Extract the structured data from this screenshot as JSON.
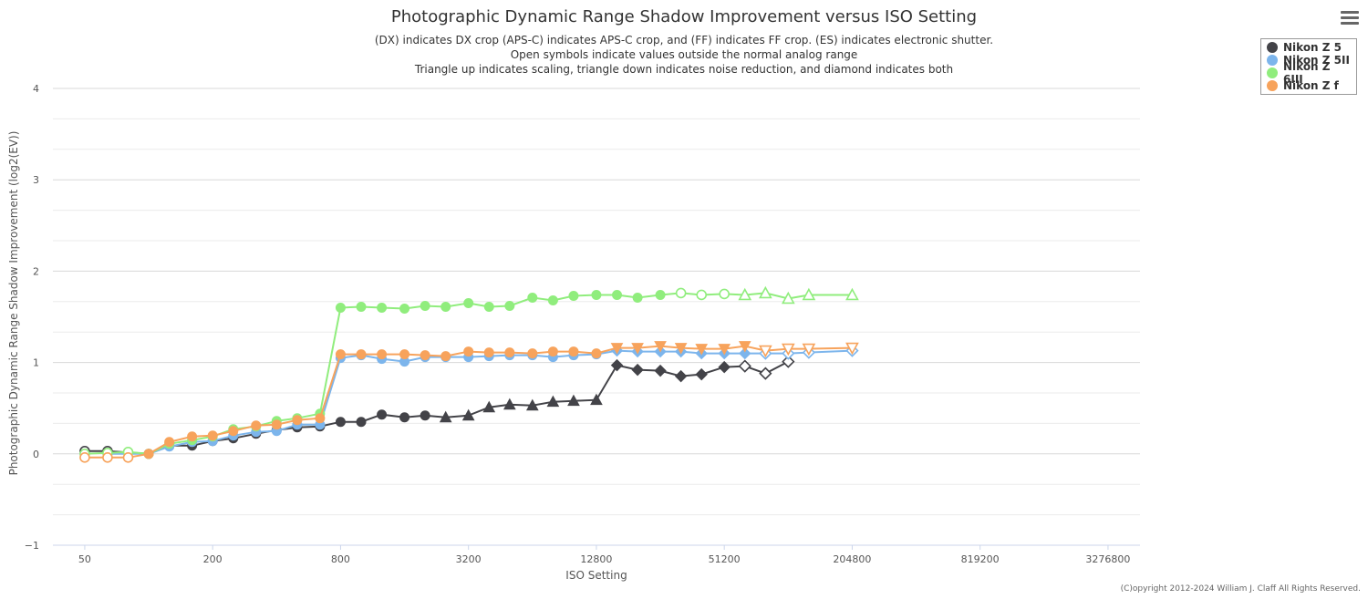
{
  "chart_data": {
    "type": "line",
    "title": "Photographic Dynamic Range Shadow Improvement versus ISO Setting",
    "subtitles": [
      "(DX) indicates DX crop (APS-C) indicates APS-C crop, and (FF) indicates FF crop. (ES) indicates electronic shutter.",
      "Open symbols indicate values outside the normal analog range",
      "Triangle up indicates scaling, triangle down indicates noise reduction, and diamond indicates both"
    ],
    "xlabel": "ISO Setting",
    "ylabel": "Photographic Dynamic Range Shadow Improvement (log2(EV))",
    "x_scale": "log2",
    "xlim": [
      35.4,
      4634146
    ],
    "ylim": [
      -1,
      4
    ],
    "x_ticks": [
      50,
      200,
      800,
      3200,
      12800,
      51200,
      204800,
      819200,
      3276800
    ],
    "x_tick_labels": [
      "50",
      "200",
      "800",
      "3200",
      "12800",
      "51200",
      "204800",
      "819200",
      "3276800"
    ],
    "y_ticks": [
      -1,
      0,
      1,
      2,
      3,
      4
    ],
    "y_tick_labels": [
      "−1",
      "0",
      "1",
      "2",
      "3",
      "4"
    ],
    "legend_position": "top-right",
    "series": [
      {
        "name": "Nikon Z 5",
        "color": "#434348",
        "points": [
          {
            "x": 50,
            "y": 0.03,
            "m": "open-circle"
          },
          {
            "x": 64,
            "y": 0.03,
            "m": "open-circle"
          },
          {
            "x": 100,
            "y": 0.0,
            "m": "circle"
          },
          {
            "x": 125,
            "y": 0.09,
            "m": "circle"
          },
          {
            "x": 160,
            "y": 0.09,
            "m": "circle"
          },
          {
            "x": 200,
            "y": 0.14,
            "m": "circle"
          },
          {
            "x": 250,
            "y": 0.17,
            "m": "circle"
          },
          {
            "x": 320,
            "y": 0.22,
            "m": "circle"
          },
          {
            "x": 400,
            "y": 0.26,
            "m": "circle"
          },
          {
            "x": 500,
            "y": 0.29,
            "m": "circle"
          },
          {
            "x": 640,
            "y": 0.3,
            "m": "circle"
          },
          {
            "x": 800,
            "y": 0.35,
            "m": "circle"
          },
          {
            "x": 1000,
            "y": 0.35,
            "m": "circle"
          },
          {
            "x": 1250,
            "y": 0.43,
            "m": "circle"
          },
          {
            "x": 1600,
            "y": 0.4,
            "m": "circle"
          },
          {
            "x": 2000,
            "y": 0.42,
            "m": "circle"
          },
          {
            "x": 2500,
            "y": 0.4,
            "m": "triangle-up"
          },
          {
            "x": 3200,
            "y": 0.42,
            "m": "triangle-up"
          },
          {
            "x": 4000,
            "y": 0.51,
            "m": "triangle-up"
          },
          {
            "x": 5000,
            "y": 0.54,
            "m": "triangle-up"
          },
          {
            "x": 6400,
            "y": 0.53,
            "m": "triangle-up"
          },
          {
            "x": 8000,
            "y": 0.57,
            "m": "triangle-up"
          },
          {
            "x": 10000,
            "y": 0.58,
            "m": "triangle-up"
          },
          {
            "x": 12800,
            "y": 0.59,
            "m": "triangle-up"
          },
          {
            "x": 16000,
            "y": 0.97,
            "m": "diamond"
          },
          {
            "x": 20000,
            "y": 0.92,
            "m": "diamond"
          },
          {
            "x": 25600,
            "y": 0.91,
            "m": "diamond"
          },
          {
            "x": 32000,
            "y": 0.85,
            "m": "diamond"
          },
          {
            "x": 40000,
            "y": 0.87,
            "m": "diamond"
          },
          {
            "x": 51200,
            "y": 0.95,
            "m": "diamond"
          },
          {
            "x": 64000,
            "y": 0.96,
            "m": "open-diamond"
          },
          {
            "x": 80000,
            "y": 0.88,
            "m": "open-diamond"
          },
          {
            "x": 102400,
            "y": 1.01,
            "m": "open-diamond"
          }
        ]
      },
      {
        "name": "Nikon Z 5II",
        "color": "#7cb5ec",
        "points": [
          {
            "x": 64,
            "y": 0.0,
            "m": "circle"
          },
          {
            "x": 100,
            "y": 0.0,
            "m": "circle"
          },
          {
            "x": 125,
            "y": 0.08,
            "m": "circle"
          },
          {
            "x": 160,
            "y": 0.13,
            "m": "circle"
          },
          {
            "x": 200,
            "y": 0.14,
            "m": "circle"
          },
          {
            "x": 250,
            "y": 0.2,
            "m": "circle"
          },
          {
            "x": 320,
            "y": 0.24,
            "m": "circle"
          },
          {
            "x": 400,
            "y": 0.25,
            "m": "circle"
          },
          {
            "x": 500,
            "y": 0.32,
            "m": "circle"
          },
          {
            "x": 640,
            "y": 0.32,
            "m": "circle"
          },
          {
            "x": 800,
            "y": 1.05,
            "m": "circle"
          },
          {
            "x": 1000,
            "y": 1.08,
            "m": "circle"
          },
          {
            "x": 1250,
            "y": 1.04,
            "m": "circle"
          },
          {
            "x": 1600,
            "y": 1.01,
            "m": "circle"
          },
          {
            "x": 2000,
            "y": 1.06,
            "m": "circle"
          },
          {
            "x": 2500,
            "y": 1.06,
            "m": "circle"
          },
          {
            "x": 3200,
            "y": 1.06,
            "m": "circle"
          },
          {
            "x": 4000,
            "y": 1.07,
            "m": "circle"
          },
          {
            "x": 5000,
            "y": 1.08,
            "m": "circle"
          },
          {
            "x": 6400,
            "y": 1.08,
            "m": "circle"
          },
          {
            "x": 8000,
            "y": 1.06,
            "m": "circle"
          },
          {
            "x": 10000,
            "y": 1.08,
            "m": "circle"
          },
          {
            "x": 12800,
            "y": 1.09,
            "m": "circle"
          },
          {
            "x": 16000,
            "y": 1.13,
            "m": "diamond"
          },
          {
            "x": 20000,
            "y": 1.12,
            "m": "diamond"
          },
          {
            "x": 25600,
            "y": 1.12,
            "m": "diamond"
          },
          {
            "x": 32000,
            "y": 1.12,
            "m": "diamond"
          },
          {
            "x": 40000,
            "y": 1.1,
            "m": "diamond"
          },
          {
            "x": 51200,
            "y": 1.1,
            "m": "diamond"
          },
          {
            "x": 64000,
            "y": 1.1,
            "m": "diamond"
          },
          {
            "x": 80000,
            "y": 1.1,
            "m": "open-diamond"
          },
          {
            "x": 102400,
            "y": 1.1,
            "m": "open-diamond"
          },
          {
            "x": 128000,
            "y": 1.11,
            "m": "open-diamond"
          },
          {
            "x": 204800,
            "y": 1.13,
            "m": "open-diamond"
          }
        ]
      },
      {
        "name": "Nikon Z 6III",
        "color": "#90ed7d",
        "points": [
          {
            "x": 50,
            "y": 0.0,
            "m": "open-circle"
          },
          {
            "x": 64,
            "y": 0.01,
            "m": "open-circle"
          },
          {
            "x": 80,
            "y": 0.02,
            "m": "open-circle"
          },
          {
            "x": 100,
            "y": 0.0,
            "m": "circle"
          },
          {
            "x": 125,
            "y": 0.11,
            "m": "circle"
          },
          {
            "x": 160,
            "y": 0.15,
            "m": "circle"
          },
          {
            "x": 200,
            "y": 0.19,
            "m": "circle"
          },
          {
            "x": 250,
            "y": 0.27,
            "m": "circle"
          },
          {
            "x": 320,
            "y": 0.3,
            "m": "circle"
          },
          {
            "x": 400,
            "y": 0.36,
            "m": "circle"
          },
          {
            "x": 500,
            "y": 0.39,
            "m": "circle"
          },
          {
            "x": 640,
            "y": 0.44,
            "m": "circle"
          },
          {
            "x": 800,
            "y": 1.6,
            "m": "circle"
          },
          {
            "x": 1000,
            "y": 1.61,
            "m": "circle"
          },
          {
            "x": 1250,
            "y": 1.6,
            "m": "circle"
          },
          {
            "x": 1600,
            "y": 1.59,
            "m": "circle"
          },
          {
            "x": 2000,
            "y": 1.62,
            "m": "circle"
          },
          {
            "x": 2500,
            "y": 1.61,
            "m": "circle"
          },
          {
            "x": 3200,
            "y": 1.65,
            "m": "circle"
          },
          {
            "x": 4000,
            "y": 1.61,
            "m": "circle"
          },
          {
            "x": 5000,
            "y": 1.62,
            "m": "circle"
          },
          {
            "x": 6400,
            "y": 1.71,
            "m": "circle"
          },
          {
            "x": 8000,
            "y": 1.68,
            "m": "circle"
          },
          {
            "x": 10000,
            "y": 1.73,
            "m": "circle"
          },
          {
            "x": 12800,
            "y": 1.74,
            "m": "circle"
          },
          {
            "x": 16000,
            "y": 1.74,
            "m": "circle"
          },
          {
            "x": 20000,
            "y": 1.71,
            "m": "circle"
          },
          {
            "x": 25600,
            "y": 1.74,
            "m": "circle"
          },
          {
            "x": 32000,
            "y": 1.76,
            "m": "open-circle"
          },
          {
            "x": 40000,
            "y": 1.74,
            "m": "open-circle"
          },
          {
            "x": 51200,
            "y": 1.75,
            "m": "open-circle"
          },
          {
            "x": 64000,
            "y": 1.74,
            "m": "open-triangle-up"
          },
          {
            "x": 80000,
            "y": 1.76,
            "m": "open-triangle-up"
          },
          {
            "x": 102400,
            "y": 1.7,
            "m": "open-triangle-up"
          },
          {
            "x": 128000,
            "y": 1.74,
            "m": "open-triangle-up"
          },
          {
            "x": 204800,
            "y": 1.74,
            "m": "open-triangle-up"
          }
        ]
      },
      {
        "name": "Nikon Z f",
        "color": "#f7a35c",
        "points": [
          {
            "x": 50,
            "y": -0.04,
            "m": "open-circle"
          },
          {
            "x": 64,
            "y": -0.04,
            "m": "open-circle"
          },
          {
            "x": 80,
            "y": -0.04,
            "m": "open-circle"
          },
          {
            "x": 100,
            "y": 0.0,
            "m": "circle"
          },
          {
            "x": 125,
            "y": 0.13,
            "m": "circle"
          },
          {
            "x": 160,
            "y": 0.19,
            "m": "circle"
          },
          {
            "x": 200,
            "y": 0.2,
            "m": "circle"
          },
          {
            "x": 250,
            "y": 0.25,
            "m": "circle"
          },
          {
            "x": 320,
            "y": 0.31,
            "m": "circle"
          },
          {
            "x": 400,
            "y": 0.32,
            "m": "circle"
          },
          {
            "x": 500,
            "y": 0.37,
            "m": "circle"
          },
          {
            "x": 640,
            "y": 0.39,
            "m": "circle"
          },
          {
            "x": 800,
            "y": 1.09,
            "m": "circle"
          },
          {
            "x": 1000,
            "y": 1.09,
            "m": "circle"
          },
          {
            "x": 1250,
            "y": 1.09,
            "m": "circle"
          },
          {
            "x": 1600,
            "y": 1.09,
            "m": "circle"
          },
          {
            "x": 2000,
            "y": 1.08,
            "m": "circle"
          },
          {
            "x": 2500,
            "y": 1.07,
            "m": "circle"
          },
          {
            "x": 3200,
            "y": 1.12,
            "m": "circle"
          },
          {
            "x": 4000,
            "y": 1.11,
            "m": "circle"
          },
          {
            "x": 5000,
            "y": 1.11,
            "m": "circle"
          },
          {
            "x": 6400,
            "y": 1.1,
            "m": "circle"
          },
          {
            "x": 8000,
            "y": 1.12,
            "m": "circle"
          },
          {
            "x": 10000,
            "y": 1.12,
            "m": "circle"
          },
          {
            "x": 12800,
            "y": 1.1,
            "m": "circle"
          },
          {
            "x": 16000,
            "y": 1.16,
            "m": "triangle-down"
          },
          {
            "x": 20000,
            "y": 1.16,
            "m": "triangle-down"
          },
          {
            "x": 25600,
            "y": 1.18,
            "m": "triangle-down"
          },
          {
            "x": 32000,
            "y": 1.16,
            "m": "triangle-down"
          },
          {
            "x": 40000,
            "y": 1.15,
            "m": "triangle-down"
          },
          {
            "x": 51200,
            "y": 1.15,
            "m": "triangle-down"
          },
          {
            "x": 64000,
            "y": 1.18,
            "m": "triangle-down"
          },
          {
            "x": 80000,
            "y": 1.13,
            "m": "open-triangle-down"
          },
          {
            "x": 102400,
            "y": 1.15,
            "m": "open-triangle-down"
          },
          {
            "x": 128000,
            "y": 1.15,
            "m": "open-triangle-down"
          },
          {
            "x": 204800,
            "y": 1.16,
            "m": "open-triangle-down"
          }
        ]
      }
    ]
  },
  "copyright": "(C)opyright 2012-2024 William J. Claff All Rights Reserved.",
  "menu_icon": "hamburger-menu-icon",
  "colors": {
    "gridline": "#e6e6e6",
    "axis_label": "#555555"
  }
}
